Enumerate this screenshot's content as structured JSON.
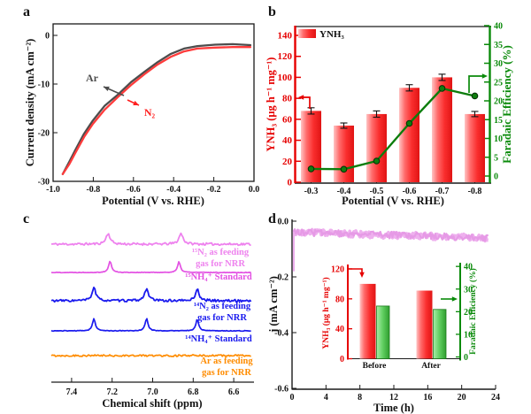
{
  "figure": {
    "panel_labels": [
      "a",
      "b",
      "c",
      "d"
    ],
    "background": "#ffffff"
  },
  "chart_data": [
    {
      "panel": "a",
      "type": "line",
      "xlabel": "Potential (V vs. RHE)",
      "ylabel": "Current density (mA cm⁻²)",
      "xlim": [
        -1.0,
        0.0
      ],
      "ylim": [
        -30,
        2
      ],
      "grid": false,
      "x_ticks": [
        -1.0,
        -0.8,
        -0.6,
        -0.4,
        -0.2,
        0.0
      ],
      "x_tick_labels": [
        "-1.0",
        "-0.8",
        "-0.6",
        "-0.4",
        "-0.2",
        "0.0"
      ],
      "y_ticks": [
        0,
        -10,
        -20,
        -30
      ],
      "y_tick_labels": [
        "0",
        "-10",
        "-20",
        "-30"
      ],
      "series": [
        {
          "name": "Ar",
          "color": "#4d4d4d",
          "x": [
            -0.952,
            -0.92,
            -0.89,
            -0.846,
            -0.802,
            -0.744,
            -0.678,
            -0.612,
            -0.546,
            -0.48,
            -0.414,
            -0.348,
            -0.282,
            -0.194,
            -0.106,
            -0.018
          ],
          "y": [
            -28.5,
            -26.0,
            -23.6,
            -20.2,
            -17.5,
            -14.5,
            -12.2,
            -9.6,
            -7.5,
            -5.5,
            -3.8,
            -2.7,
            -2.2,
            -1.9,
            -1.8,
            -2.0
          ]
        },
        {
          "name": "N₂",
          "color": "#ff3b3b",
          "x": [
            -0.952,
            -0.92,
            -0.89,
            -0.846,
            -0.802,
            -0.744,
            -0.678,
            -0.612,
            -0.546,
            -0.48,
            -0.414,
            -0.348,
            -0.282,
            -0.194,
            -0.106,
            -0.018
          ],
          "y": [
            -28.5,
            -26.5,
            -24.2,
            -20.9,
            -18.2,
            -15.3,
            -12.7,
            -10.2,
            -8.0,
            -6.0,
            -4.4,
            -3.3,
            -2.7,
            -2.5,
            -2.4,
            -2.4
          ]
        }
      ],
      "annotations": [
        {
          "text": "Ar",
          "color": "#4d4d4d"
        },
        {
          "text": "N₂",
          "color": "#ff2020"
        }
      ]
    },
    {
      "panel": "b",
      "type": "bar+line",
      "xlabel": "Potential (V vs. RHE)",
      "ylabel_left": "YNH₃ (μg h⁻¹ mg⁻¹)",
      "ylabel_right": "Faradaic Efficiency (%)",
      "categories": [
        "-0.3",
        "-0.4",
        "-0.5",
        "-0.6",
        "-0.7",
        "-0.8"
      ],
      "bar_series": {
        "name": "YNH₃",
        "values": [
          68,
          54,
          65,
          90,
          100,
          65
        ],
        "errors": [
          3,
          2.5,
          3,
          3,
          3,
          2.5
        ]
      },
      "line_series": {
        "name": "Faradaic Efficiency",
        "values": [
          1.9,
          1.8,
          4.0,
          14.0,
          23.3,
          21.3
        ],
        "color": "#0c7d0c"
      },
      "ylim_left": [
        0,
        148
      ],
      "ylim_right": [
        0,
        42
      ],
      "y_ticks_left": [
        0,
        20,
        40,
        60,
        80,
        100,
        120,
        140
      ],
      "y_ticks_right": [
        0,
        5,
        10,
        15,
        20,
        25,
        30,
        35,
        40
      ],
      "legend": {
        "label": "YNH₃"
      },
      "axis_colors": {
        "left": "#e60000",
        "right": "#0a8a0a"
      },
      "bar_gradient": [
        "#ffc4c4",
        "#ff6b6b",
        "#fa2e2e",
        "#e01414"
      ]
    },
    {
      "panel": "c",
      "type": "line",
      "xlabel": "Chemical shift (ppm)",
      "xlim": [
        7.5,
        6.5
      ],
      "x_ticks": [
        7.4,
        7.2,
        7.0,
        6.8,
        6.6
      ],
      "x_tick_labels": [
        "7.4",
        "7.2",
        "7.0",
        "6.8",
        "6.6"
      ],
      "traces": [
        {
          "name": "15N2 feeding gas",
          "color": "#ee82ee",
          "noise": 1.3,
          "peaks": [
            {
              "ppm": 7.22,
              "h": 12
            },
            {
              "ppm": 6.86,
              "h": 12
            }
          ],
          "label_lines": [
            "¹⁵N₂ as feeding",
            "gas for NRR"
          ]
        },
        {
          "name": "15NH4 standard",
          "color": "#e352e3",
          "noise": 0.35,
          "peaks": [
            {
              "ppm": 7.21,
              "h": 13
            },
            {
              "ppm": 6.87,
              "h": 12
            }
          ],
          "label_lines": [
            "¹⁵NH₄⁺ Standard"
          ]
        },
        {
          "name": "14N2 feeding gas",
          "color": "#1a1aee",
          "noise": 1.3,
          "peaks": [
            {
              "ppm": 7.29,
              "h": 15
            },
            {
              "ppm": 7.03,
              "h": 14
            },
            {
              "ppm": 6.78,
              "h": 13
            }
          ],
          "label_lines": [
            "¹⁴N₂ as feeding",
            "gas for NRR"
          ]
        },
        {
          "name": "14NH4 standard",
          "color": "#1a1aee",
          "noise": 0.35,
          "peaks": [
            {
              "ppm": 7.29,
              "h": 14
            },
            {
              "ppm": 7.03,
              "h": 14
            },
            {
              "ppm": 6.78,
              "h": 13
            }
          ],
          "label_lines": [
            "¹⁴NH₄⁺ Standard"
          ]
        },
        {
          "name": "Ar feeding gas",
          "color": "#ff8c00",
          "noise": 1.0,
          "peaks": [],
          "label_lines": [
            "Ar as feeding",
            "gas for NRR"
          ]
        }
      ]
    },
    {
      "panel": "d",
      "type": "line+bar",
      "xlabel": "Time (h)",
      "ylabel": "j (mA cm⁻²)",
      "x_ticks": [
        0,
        4,
        8,
        12,
        16,
        20,
        24
      ],
      "x_tick_labels": [
        "0",
        "4",
        "8",
        "12",
        "16",
        "20",
        "24"
      ],
      "y_ticks": [
        0.0,
        -0.2,
        -0.4,
        -0.6
      ],
      "y_tick_labels": [
        "0.0",
        "-0.2",
        "-0.4",
        "-0.6"
      ],
      "it_curve": {
        "color": "#edaeed",
        "t_start": 0.2,
        "t_end": 23.2,
        "j_start": -0.04,
        "j_end": -0.06,
        "j_spike": -0.18,
        "noise": 0.012
      },
      "inset": {
        "ylabel_left": "YNH₃ (μg h⁻¹ mg⁻¹)",
        "ylabel_right": "Faradaic Efficiency (%)",
        "y_ticks_left": [
          0,
          40,
          80,
          120
        ],
        "y_ticks_right": [
          0,
          10,
          20,
          30,
          40
        ],
        "groups": [
          "Before",
          "After"
        ],
        "yield_series": {
          "name": "YNH₃",
          "values": [
            100,
            91
          ]
        },
        "fe_series": {
          "name": "Faradaic Efficiency",
          "values": [
            22.5,
            21
          ]
        },
        "axis_colors": {
          "left": "#e60000",
          "right": "#0a8a0a"
        },
        "bar_gradient_green": [
          "#a8eca8",
          "#5fce5f",
          "#2f9e2f"
        ]
      }
    }
  ]
}
